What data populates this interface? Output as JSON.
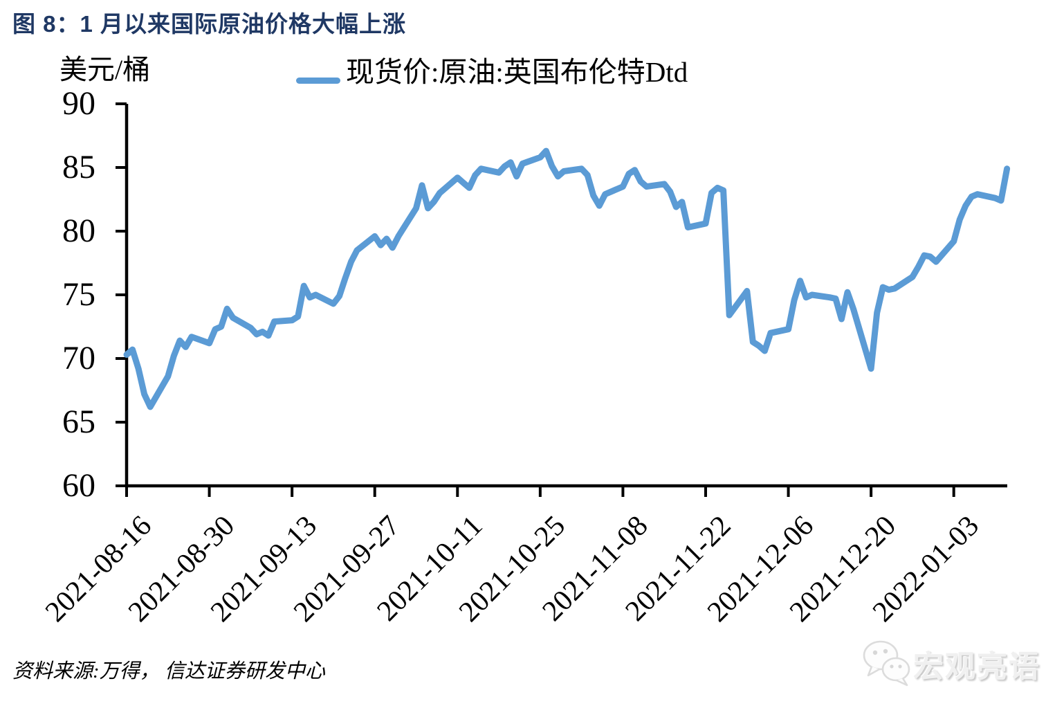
{
  "header": {
    "title": "图 8：1 月以来国际原油价格大幅上涨"
  },
  "legend": {
    "label": "现货价:原油:英国布伦特Dtd",
    "color": "#5B9BD5"
  },
  "footer": {
    "source": "资料来源:万得， 信达证券研发中心"
  },
  "watermark": {
    "brand": "宏观亮语",
    "icon": "wechat-icon"
  },
  "chart_data": {
    "type": "line",
    "title": "图 8：1 月以来国际原油价格大幅上涨",
    "ylabel": "美元/桶",
    "xlabel": "",
    "ylim": [
      60,
      90
    ],
    "yticks": [
      90,
      85,
      80,
      75,
      70,
      65,
      60
    ],
    "xticks": [
      "2021-08-16",
      "2021-08-30",
      "2021-09-13",
      "2021-09-27",
      "2021-10-11",
      "2021-10-25",
      "2021-11-08",
      "2021-11-22",
      "2021-12-06",
      "2021-12-20",
      "2022-01-03"
    ],
    "grid": false,
    "legend_position": "top-center",
    "axis_color": "#000000",
    "series": [
      {
        "name": "现货价:原油:英国布伦特Dtd",
        "color": "#5B9BD5",
        "x": [
          "2021-08-16",
          "2021-08-17",
          "2021-08-18",
          "2021-08-19",
          "2021-08-20",
          "2021-08-23",
          "2021-08-24",
          "2021-08-25",
          "2021-08-26",
          "2021-08-27",
          "2021-08-30",
          "2021-08-31",
          "2021-09-01",
          "2021-09-02",
          "2021-09-03",
          "2021-09-06",
          "2021-09-07",
          "2021-09-08",
          "2021-09-09",
          "2021-09-10",
          "2021-09-13",
          "2021-09-14",
          "2021-09-15",
          "2021-09-16",
          "2021-09-17",
          "2021-09-20",
          "2021-09-21",
          "2021-09-22",
          "2021-09-23",
          "2021-09-24",
          "2021-09-27",
          "2021-09-28",
          "2021-09-29",
          "2021-09-30",
          "2021-10-01",
          "2021-10-04",
          "2021-10-05",
          "2021-10-06",
          "2021-10-07",
          "2021-10-08",
          "2021-10-11",
          "2021-10-12",
          "2021-10-13",
          "2021-10-14",
          "2021-10-15",
          "2021-10-18",
          "2021-10-19",
          "2021-10-20",
          "2021-10-21",
          "2021-10-22",
          "2021-10-25",
          "2021-10-26",
          "2021-10-27",
          "2021-10-28",
          "2021-10-29",
          "2021-11-01",
          "2021-11-02",
          "2021-11-03",
          "2021-11-04",
          "2021-11-05",
          "2021-11-08",
          "2021-11-09",
          "2021-11-10",
          "2021-11-11",
          "2021-11-12",
          "2021-11-15",
          "2021-11-16",
          "2021-11-17",
          "2021-11-18",
          "2021-11-19",
          "2021-11-22",
          "2021-11-23",
          "2021-11-24",
          "2021-11-25",
          "2021-11-26",
          "2021-11-29",
          "2021-11-30",
          "2021-12-01",
          "2021-12-02",
          "2021-12-03",
          "2021-12-06",
          "2021-12-07",
          "2021-12-08",
          "2021-12-09",
          "2021-12-10",
          "2021-12-13",
          "2021-12-14",
          "2021-12-15",
          "2021-12-16",
          "2021-12-17",
          "2021-12-20",
          "2021-12-21",
          "2021-12-22",
          "2021-12-23",
          "2021-12-24",
          "2021-12-27",
          "2021-12-28",
          "2021-12-29",
          "2021-12-30",
          "2021-12-31",
          "2022-01-03",
          "2022-01-04",
          "2022-01-05",
          "2022-01-06",
          "2022-01-07",
          "2022-01-10",
          "2022-01-11",
          "2022-01-12"
        ],
        "y": [
          70.3,
          70.7,
          69.2,
          67.2,
          66.2,
          68.6,
          70.2,
          71.4,
          70.9,
          71.7,
          71.2,
          72.3,
          72.5,
          73.9,
          73.2,
          72.4,
          71.9,
          72.1,
          71.8,
          72.9,
          73.0,
          73.3,
          75.7,
          74.8,
          75.0,
          74.3,
          74.9,
          76.3,
          77.6,
          78.5,
          79.6,
          78.9,
          79.4,
          78.7,
          79.6,
          81.8,
          83.6,
          81.8,
          82.3,
          83.0,
          84.2,
          83.8,
          83.4,
          84.4,
          84.9,
          84.6,
          85.1,
          85.4,
          84.3,
          85.3,
          85.8,
          86.3,
          85.1,
          84.3,
          84.7,
          84.9,
          84.4,
          82.8,
          82.0,
          82.9,
          83.5,
          84.5,
          84.8,
          83.9,
          83.5,
          83.7,
          83.1,
          81.9,
          82.3,
          80.3,
          80.6,
          83.0,
          83.4,
          83.2,
          73.4,
          75.3,
          71.3,
          71.0,
          70.6,
          72.0,
          72.3,
          74.6,
          76.1,
          74.8,
          75.0,
          74.8,
          74.7,
          73.1,
          75.2,
          73.9,
          69.2,
          73.6,
          75.6,
          75.4,
          75.5,
          76.4,
          77.2,
          78.1,
          78.0,
          77.6,
          79.2,
          80.9,
          82.0,
          82.7,
          82.9,
          82.6,
          82.4,
          84.9
        ]
      }
    ]
  }
}
